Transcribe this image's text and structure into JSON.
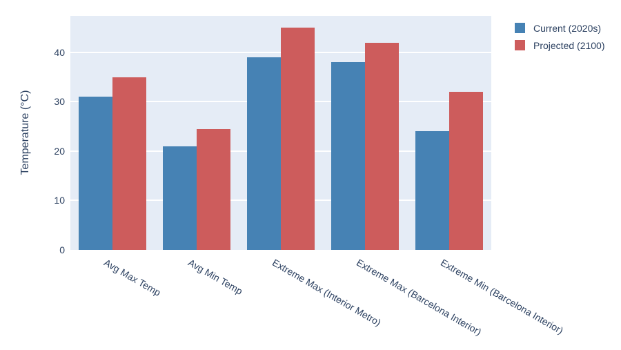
{
  "chart_data": {
    "type": "bar",
    "title": "",
    "categories": [
      "Avg Max Temp",
      "Avg Min Temp",
      "Extreme Max (Interior Metro)",
      "Extreme Max (Barcelona Interior)",
      "Extreme Min (Barcelona Interior)"
    ],
    "series": [
      {
        "name": "Current (2020s)",
        "color": "#4682b4",
        "values": [
          31,
          21,
          39,
          38,
          24
        ]
      },
      {
        "name": "Projected (2100)",
        "color": "#cd5c5c",
        "values": [
          35,
          24.5,
          45,
          42,
          32
        ]
      }
    ],
    "xlabel": "",
    "ylabel": "Temperature (°C)",
    "yticks": [
      0,
      10,
      20,
      30,
      40
    ],
    "ylim": [
      0,
      47.4
    ],
    "grid": "horizontal",
    "gridline_color": "#ffffff",
    "plot_bg_color": "#e5ecf6",
    "font_color": "#2a3f5f",
    "legend_position": "top-right",
    "x_tick_angle_deg": 30
  }
}
